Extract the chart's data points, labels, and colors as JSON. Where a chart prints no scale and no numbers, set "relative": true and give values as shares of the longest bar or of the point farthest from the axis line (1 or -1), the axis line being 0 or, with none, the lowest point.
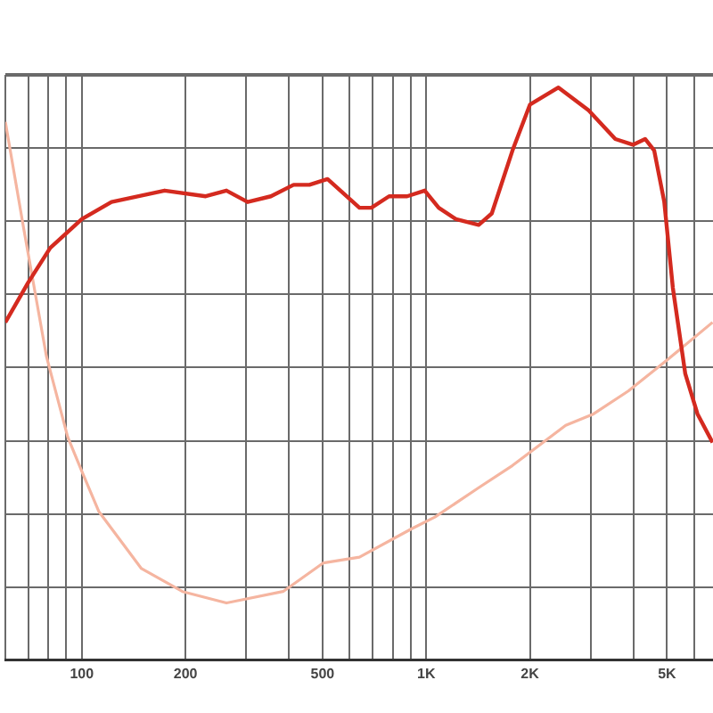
{
  "chart_data": {
    "type": "line",
    "log": "x",
    "relative": true,
    "grid": true,
    "legend": false,
    "marker": "none",
    "line_style": "solid",
    "xlim": [
      60,
      6800
    ],
    "xticks": [
      {
        "value": 60,
        "label": null
      },
      {
        "value": 70,
        "label": null
      },
      {
        "value": 80,
        "label": null
      },
      {
        "value": 90,
        "label": null
      },
      {
        "value": 100,
        "label": "100"
      },
      {
        "value": 200,
        "label": "200"
      },
      {
        "value": 300,
        "label": null
      },
      {
        "value": 400,
        "label": null
      },
      {
        "value": 500,
        "label": "500"
      },
      {
        "value": 600,
        "label": null
      },
      {
        "value": 700,
        "label": null
      },
      {
        "value": 800,
        "label": null
      },
      {
        "value": 900,
        "label": null
      },
      {
        "value": 1000,
        "label": "1K"
      },
      {
        "value": 2000,
        "label": "2K"
      },
      {
        "value": 3000,
        "label": null
      },
      {
        "value": 4000,
        "label": null
      },
      {
        "value": 5000,
        "label": "5K"
      },
      {
        "value": 6000,
        "label": null
      }
    ],
    "series": [
      {
        "color": "#d42a1f",
        "x": [
          60,
          70,
          81,
          100,
          122,
          174,
          229,
          263,
          303,
          354,
          412,
          458,
          517,
          640,
          693,
          780,
          880,
          990,
          1087,
          1220,
          1420,
          1550,
          1780,
          2000,
          2420,
          2960,
          3540,
          3980,
          4320,
          4590,
          4910,
          5200,
          5650,
          6130,
          6780
        ],
        "values": [
          0.59,
          0.66,
          0.72,
          0.77,
          0.8,
          0.82,
          0.81,
          0.82,
          0.8,
          0.81,
          0.83,
          0.83,
          0.84,
          0.79,
          0.79,
          0.81,
          0.81,
          0.82,
          0.79,
          0.77,
          0.76,
          0.78,
          0.89,
          0.97,
          1.0,
          0.96,
          0.91,
          0.9,
          0.91,
          0.89,
          0.8,
          0.65,
          0.5,
          0.43,
          0.38
        ]
      },
      {
        "color": "#f5b5a0",
        "x": [
          60,
          68,
          79,
          91,
          100,
          112,
          149,
          196,
          263,
          384,
          503,
          640,
          910,
          1060,
          1410,
          1780,
          2540,
          3060,
          3860,
          4910,
          6780
        ],
        "values": [
          0.94,
          0.75,
          0.53,
          0.39,
          0.33,
          0.26,
          0.16,
          0.12,
          0.1,
          0.12,
          0.17,
          0.18,
          0.23,
          0.25,
          0.3,
          0.34,
          0.41,
          0.43,
          0.47,
          0.52,
          0.59
        ]
      }
    ]
  }
}
